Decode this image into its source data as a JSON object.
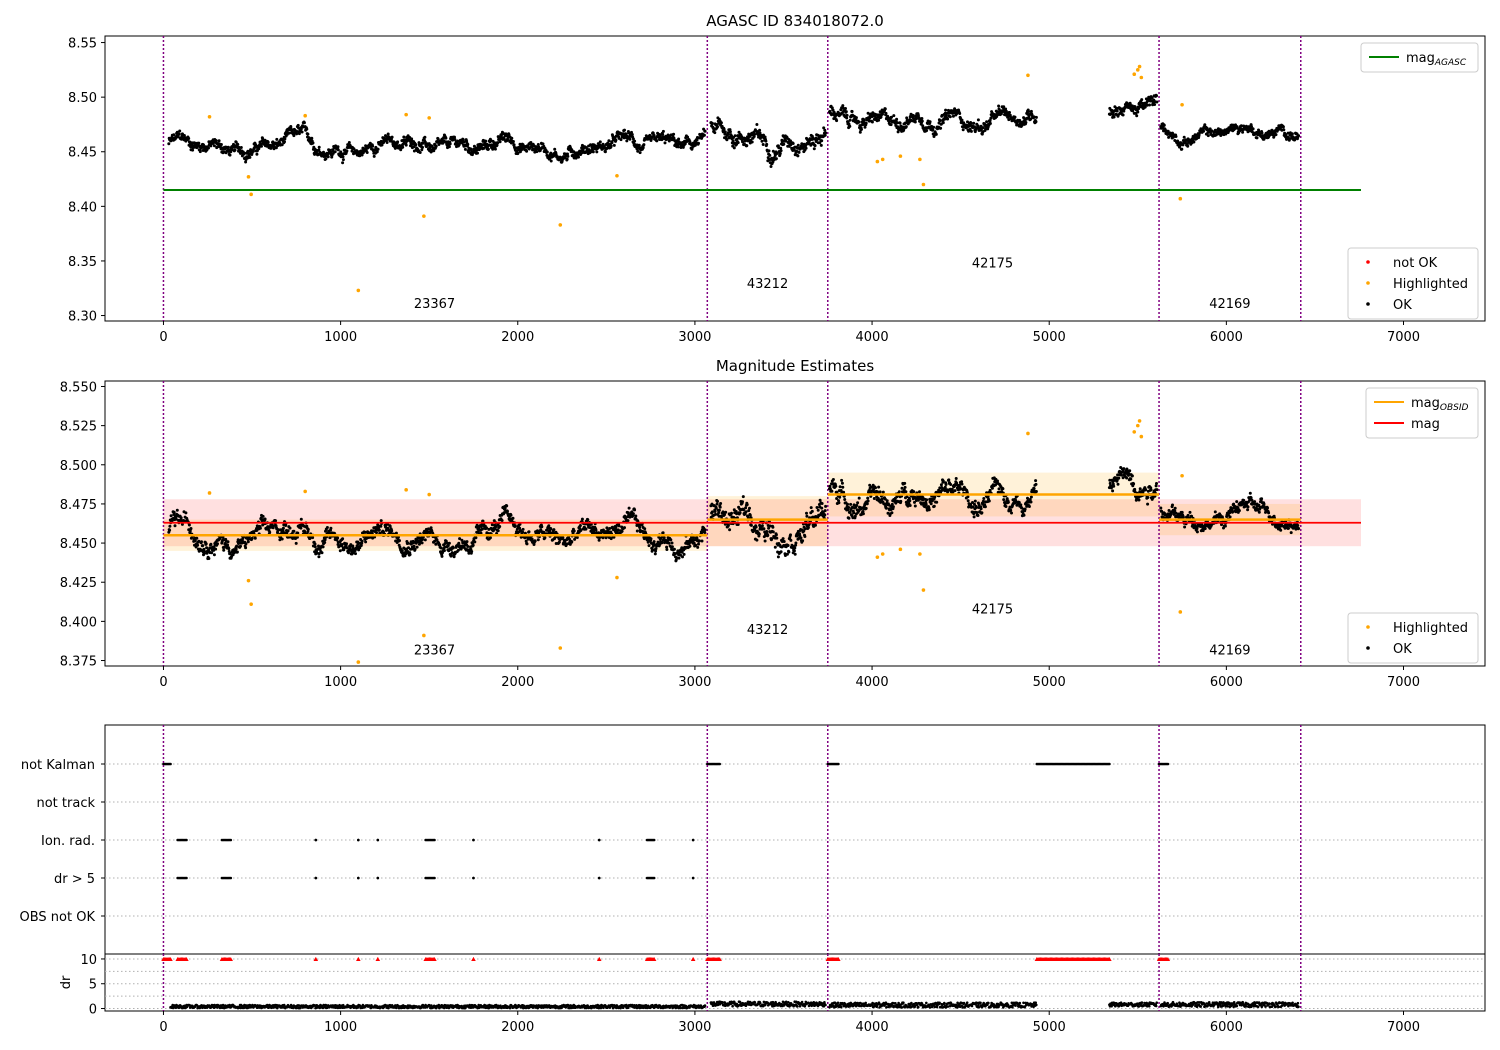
{
  "chart_data": [
    {
      "type": "scatter",
      "title": "AGASC ID 834018072.0",
      "xlim": [
        -330,
        7460
      ],
      "ylim": [
        8.295,
        8.556
      ],
      "yticks": [
        8.3,
        8.35,
        8.4,
        8.45,
        8.5,
        8.55
      ],
      "ytick_labels": [
        "8.30",
        "8.35",
        "8.40",
        "8.45",
        "8.50",
        "8.55"
      ],
      "xticks": [
        0,
        1000,
        2000,
        3000,
        4000,
        5000,
        6000,
        7000
      ],
      "xtick_labels": [
        "0",
        "1000",
        "2000",
        "3000",
        "4000",
        "5000",
        "6000",
        "7000"
      ],
      "mag_agasc": 8.415,
      "mag_agasc_xrange": [
        0,
        6760
      ],
      "obsid_boundaries": [
        0,
        3070,
        3750,
        5620,
        6420
      ],
      "obsid_labels": [
        {
          "text": "23367",
          "x": 1530,
          "y": 8.307
        },
        {
          "text": "43212",
          "x": 3410,
          "y": 8.325
        },
        {
          "text": "42175",
          "x": 4680,
          "y": 8.344
        },
        {
          "text": "42169",
          "x": 6020,
          "y": 8.307
        }
      ],
      "legend_upper": [
        {
          "label": "mag",
          "sub": "AGASC",
          "color": "#008000"
        }
      ],
      "legend_lower": [
        {
          "label": "not OK",
          "color": "#ff0000"
        },
        {
          "label": "Highlighted",
          "color": "#ffa500"
        },
        {
          "label": "OK",
          "color": "#000000"
        }
      ],
      "highlighted": [
        [
          260,
          8.482
        ],
        [
          480,
          8.427
        ],
        [
          495,
          8.411
        ],
        [
          800,
          8.483
        ],
        [
          1100,
          8.323
        ],
        [
          1370,
          8.484
        ],
        [
          1470,
          8.391
        ],
        [
          1500,
          8.481
        ],
        [
          2240,
          8.383
        ],
        [
          2560,
          8.428
        ],
        [
          4030,
          8.441
        ],
        [
          4060,
          8.443
        ],
        [
          4160,
          8.446
        ],
        [
          4270,
          8.443
        ],
        [
          4290,
          8.42
        ],
        [
          4880,
          8.52
        ],
        [
          5480,
          8.521
        ],
        [
          5500,
          8.525
        ],
        [
          5510,
          8.528
        ],
        [
          5520,
          8.518
        ],
        [
          5740,
          8.407
        ],
        [
          5750,
          8.493
        ]
      ],
      "ok_segments": [
        {
          "x": [
            30,
            3060
          ],
          "base": 8.455,
          "amp": 0.018
        },
        {
          "x": [
            3090,
            3740
          ],
          "base": 8.465,
          "amp": 0.025
        },
        {
          "x": [
            3760,
            4930
          ],
          "base": 8.48,
          "amp": 0.02
        },
        {
          "x": [
            5340,
            5610
          ],
          "base": 8.488,
          "amp": 0.02
        },
        {
          "x": [
            5630,
            6410
          ],
          "base": 8.468,
          "amp": 0.015
        }
      ]
    },
    {
      "type": "scatter",
      "title": "Magnitude Estimates",
      "xlim": [
        -330,
        7460
      ],
      "ylim": [
        8.3715,
        8.5535
      ],
      "yticks": [
        8.375,
        8.4,
        8.425,
        8.45,
        8.475,
        8.5,
        8.525,
        8.55
      ],
      "ytick_labels": [
        "8.375",
        "8.400",
        "8.425",
        "8.450",
        "8.475",
        "8.500",
        "8.525",
        "8.550"
      ],
      "xticks": [
        0,
        1000,
        2000,
        3000,
        4000,
        5000,
        6000,
        7000
      ],
      "xtick_labels": [
        "0",
        "1000",
        "2000",
        "3000",
        "4000",
        "5000",
        "6000",
        "7000"
      ],
      "mag": 8.463,
      "mag_band": [
        8.448,
        8.478
      ],
      "mag_xrange": [
        0,
        6760
      ],
      "obsid_mags": [
        {
          "x": [
            0,
            3070
          ],
          "mag": 8.455,
          "band": [
            8.445,
            8.465
          ]
        },
        {
          "x": [
            3070,
            3750
          ],
          "mag": 8.465,
          "band": [
            8.448,
            8.48
          ]
        },
        {
          "x": [
            3750,
            5620
          ],
          "mag": 8.481,
          "band": [
            8.467,
            8.495
          ]
        },
        {
          "x": [
            5620,
            6420
          ],
          "mag": 8.465,
          "band": [
            8.455,
            8.475
          ]
        }
      ],
      "obsid_boundaries": [
        0,
        3070,
        3750,
        5620,
        6420
      ],
      "obsid_labels": [
        {
          "text": "23367",
          "x": 1530,
          "y": 8.379
        },
        {
          "text": "43212",
          "x": 3410,
          "y": 8.392
        },
        {
          "text": "42175",
          "x": 4680,
          "y": 8.405
        },
        {
          "text": "42169",
          "x": 6020,
          "y": 8.379
        }
      ],
      "legend_upper": [
        {
          "label": "mag",
          "sub": "OBSID",
          "color": "#ffa500"
        },
        {
          "label": "mag",
          "sub": "",
          "color": "#ff0000"
        }
      ],
      "legend_lower": [
        {
          "label": "Highlighted",
          "color": "#ffa500"
        },
        {
          "label": "OK",
          "color": "#000000"
        }
      ],
      "highlighted": [
        [
          260,
          8.482
        ],
        [
          480,
          8.426
        ],
        [
          495,
          8.411
        ],
        [
          800,
          8.483
        ],
        [
          1100,
          8.374
        ],
        [
          1370,
          8.484
        ],
        [
          1470,
          8.391
        ],
        [
          1500,
          8.481
        ],
        [
          2240,
          8.383
        ],
        [
          2560,
          8.428
        ],
        [
          4030,
          8.441
        ],
        [
          4060,
          8.443
        ],
        [
          4160,
          8.446
        ],
        [
          4270,
          8.443
        ],
        [
          4290,
          8.42
        ],
        [
          4880,
          8.52
        ],
        [
          5480,
          8.521
        ],
        [
          5500,
          8.525
        ],
        [
          5510,
          8.528
        ],
        [
          5520,
          8.518
        ],
        [
          5740,
          8.406
        ],
        [
          5750,
          8.493
        ]
      ]
    },
    {
      "type": "scatter",
      "xlim": [
        -330,
        7460
      ],
      "flag_rows": [
        "not Kalman",
        "not track",
        "Ion. rad.",
        "dr > 5",
        "OBS not OK"
      ],
      "flags": {
        "not Kalman": [
          [
            0,
            40
          ],
          [
            3070,
            3140
          ],
          [
            3750,
            3810
          ],
          [
            4930,
            5340
          ],
          [
            5620,
            5670
          ]
        ],
        "not track": [],
        "Ion. rad.": [
          [
            80,
            130
          ],
          [
            330,
            380
          ],
          [
            860,
            860
          ],
          [
            1100,
            1100
          ],
          [
            1210,
            1210
          ],
          [
            1480,
            1530
          ],
          [
            1750,
            1750
          ],
          [
            2460,
            2460
          ],
          [
            2730,
            2770
          ],
          [
            2990,
            2990
          ]
        ],
        "dr > 5": [
          [
            80,
            130
          ],
          [
            330,
            380
          ],
          [
            860,
            860
          ],
          [
            1100,
            1100
          ],
          [
            1210,
            1210
          ],
          [
            1480,
            1530
          ],
          [
            1750,
            1750
          ],
          [
            2460,
            2460
          ],
          [
            2730,
            2770
          ],
          [
            2990,
            2990
          ]
        ],
        "OBS not OK": []
      },
      "dr_ylabel": "dr",
      "dr_ylim": [
        -0.5,
        11
      ],
      "dr_yticks": [
        0,
        5,
        10
      ],
      "dr_ytick_labels": [
        "0",
        "5",
        "10"
      ],
      "xticks": [
        0,
        1000,
        2000,
        3000,
        4000,
        5000,
        6000,
        7000
      ],
      "xtick_labels": [
        "0",
        "1000",
        "2000",
        "3000",
        "4000",
        "5000",
        "6000",
        "7000"
      ],
      "dr_clipped_color": "#ff0000",
      "dr_segments": [
        {
          "x": [
            40,
            3060
          ],
          "base": 0.4,
          "amp": 0.4
        },
        {
          "x": [
            3090,
            3740
          ],
          "base": 0.9,
          "amp": 0.6
        },
        {
          "x": [
            3760,
            4930
          ],
          "base": 0.7,
          "amp": 0.6
        },
        {
          "x": [
            5340,
            5610
          ],
          "base": 0.8,
          "amp": 0.5
        },
        {
          "x": [
            5630,
            6410
          ],
          "base": 0.8,
          "amp": 0.6
        }
      ],
      "obsid_boundaries": [
        0,
        3070,
        3750,
        5620,
        6420
      ]
    }
  ]
}
